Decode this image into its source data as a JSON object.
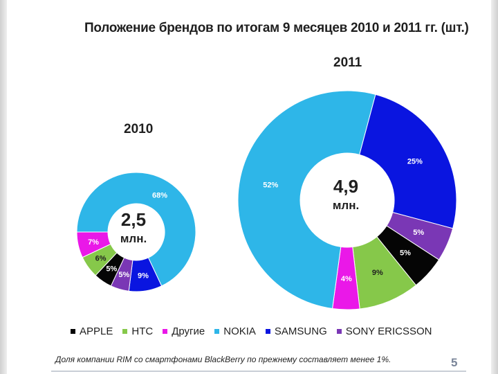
{
  "slide": {
    "title": "Положение брендов по итогам 9 месяцев 2010 и 2011 гг. (шт.)",
    "footnote": "Доля компании RIM со смартфонами BlackBerry по прежнему составляет менее 1%.",
    "page_number": "5"
  },
  "chart_data": [
    {
      "type": "pie",
      "title": "2010",
      "center_value": "2,5",
      "center_unit": "млн.",
      "slices": [
        {
          "label": "NOKIA",
          "value": 68,
          "text": "68%",
          "color": "#2eb6e8"
        },
        {
          "label": "SAMSUNG",
          "value": 9,
          "text": "9%",
          "color": "#0a15e0"
        },
        {
          "label": "SONY ERICSSON",
          "value": 5,
          "text": "5%",
          "color": "#7a37b5"
        },
        {
          "label": "APPLE",
          "value": 5,
          "text": "5%",
          "color": "#050505"
        },
        {
          "label": "HTC",
          "value": 6,
          "text": "6%",
          "color": "#86c84a"
        },
        {
          "label": "Другие",
          "value": 7,
          "text": "7%",
          "color": "#ea18e8"
        }
      ]
    },
    {
      "type": "pie",
      "title": "2011",
      "center_value": "4,9",
      "center_unit": "млн.",
      "slices": [
        {
          "label": "SAMSUNG",
          "value": 25,
          "text": "25%",
          "color": "#0a15e0"
        },
        {
          "label": "SONY ERICSSON",
          "value": 5,
          "text": "5%",
          "color": "#7a37b5"
        },
        {
          "label": "APPLE",
          "value": 5,
          "text": "5%",
          "color": "#050505"
        },
        {
          "label": "HTC",
          "value": 9,
          "text": "9%",
          "color": "#86c84a"
        },
        {
          "label": "Другие",
          "value": 4,
          "text": "4%",
          "color": "#ea18e8"
        },
        {
          "label": "NOKIA",
          "value": 52,
          "text": "52%",
          "color": "#2eb6e8"
        }
      ]
    }
  ],
  "legend": [
    {
      "label": "APPLE",
      "color": "#050505"
    },
    {
      "label": "HTC",
      "color": "#86c84a"
    },
    {
      "label": "Другие",
      "color": "#ea18e8"
    },
    {
      "label": "NOKIA",
      "color": "#2eb6e8"
    },
    {
      "label": "SAMSUNG",
      "color": "#0a15e0"
    },
    {
      "label": "SONY ERICSSON",
      "color": "#7a37b5"
    }
  ]
}
